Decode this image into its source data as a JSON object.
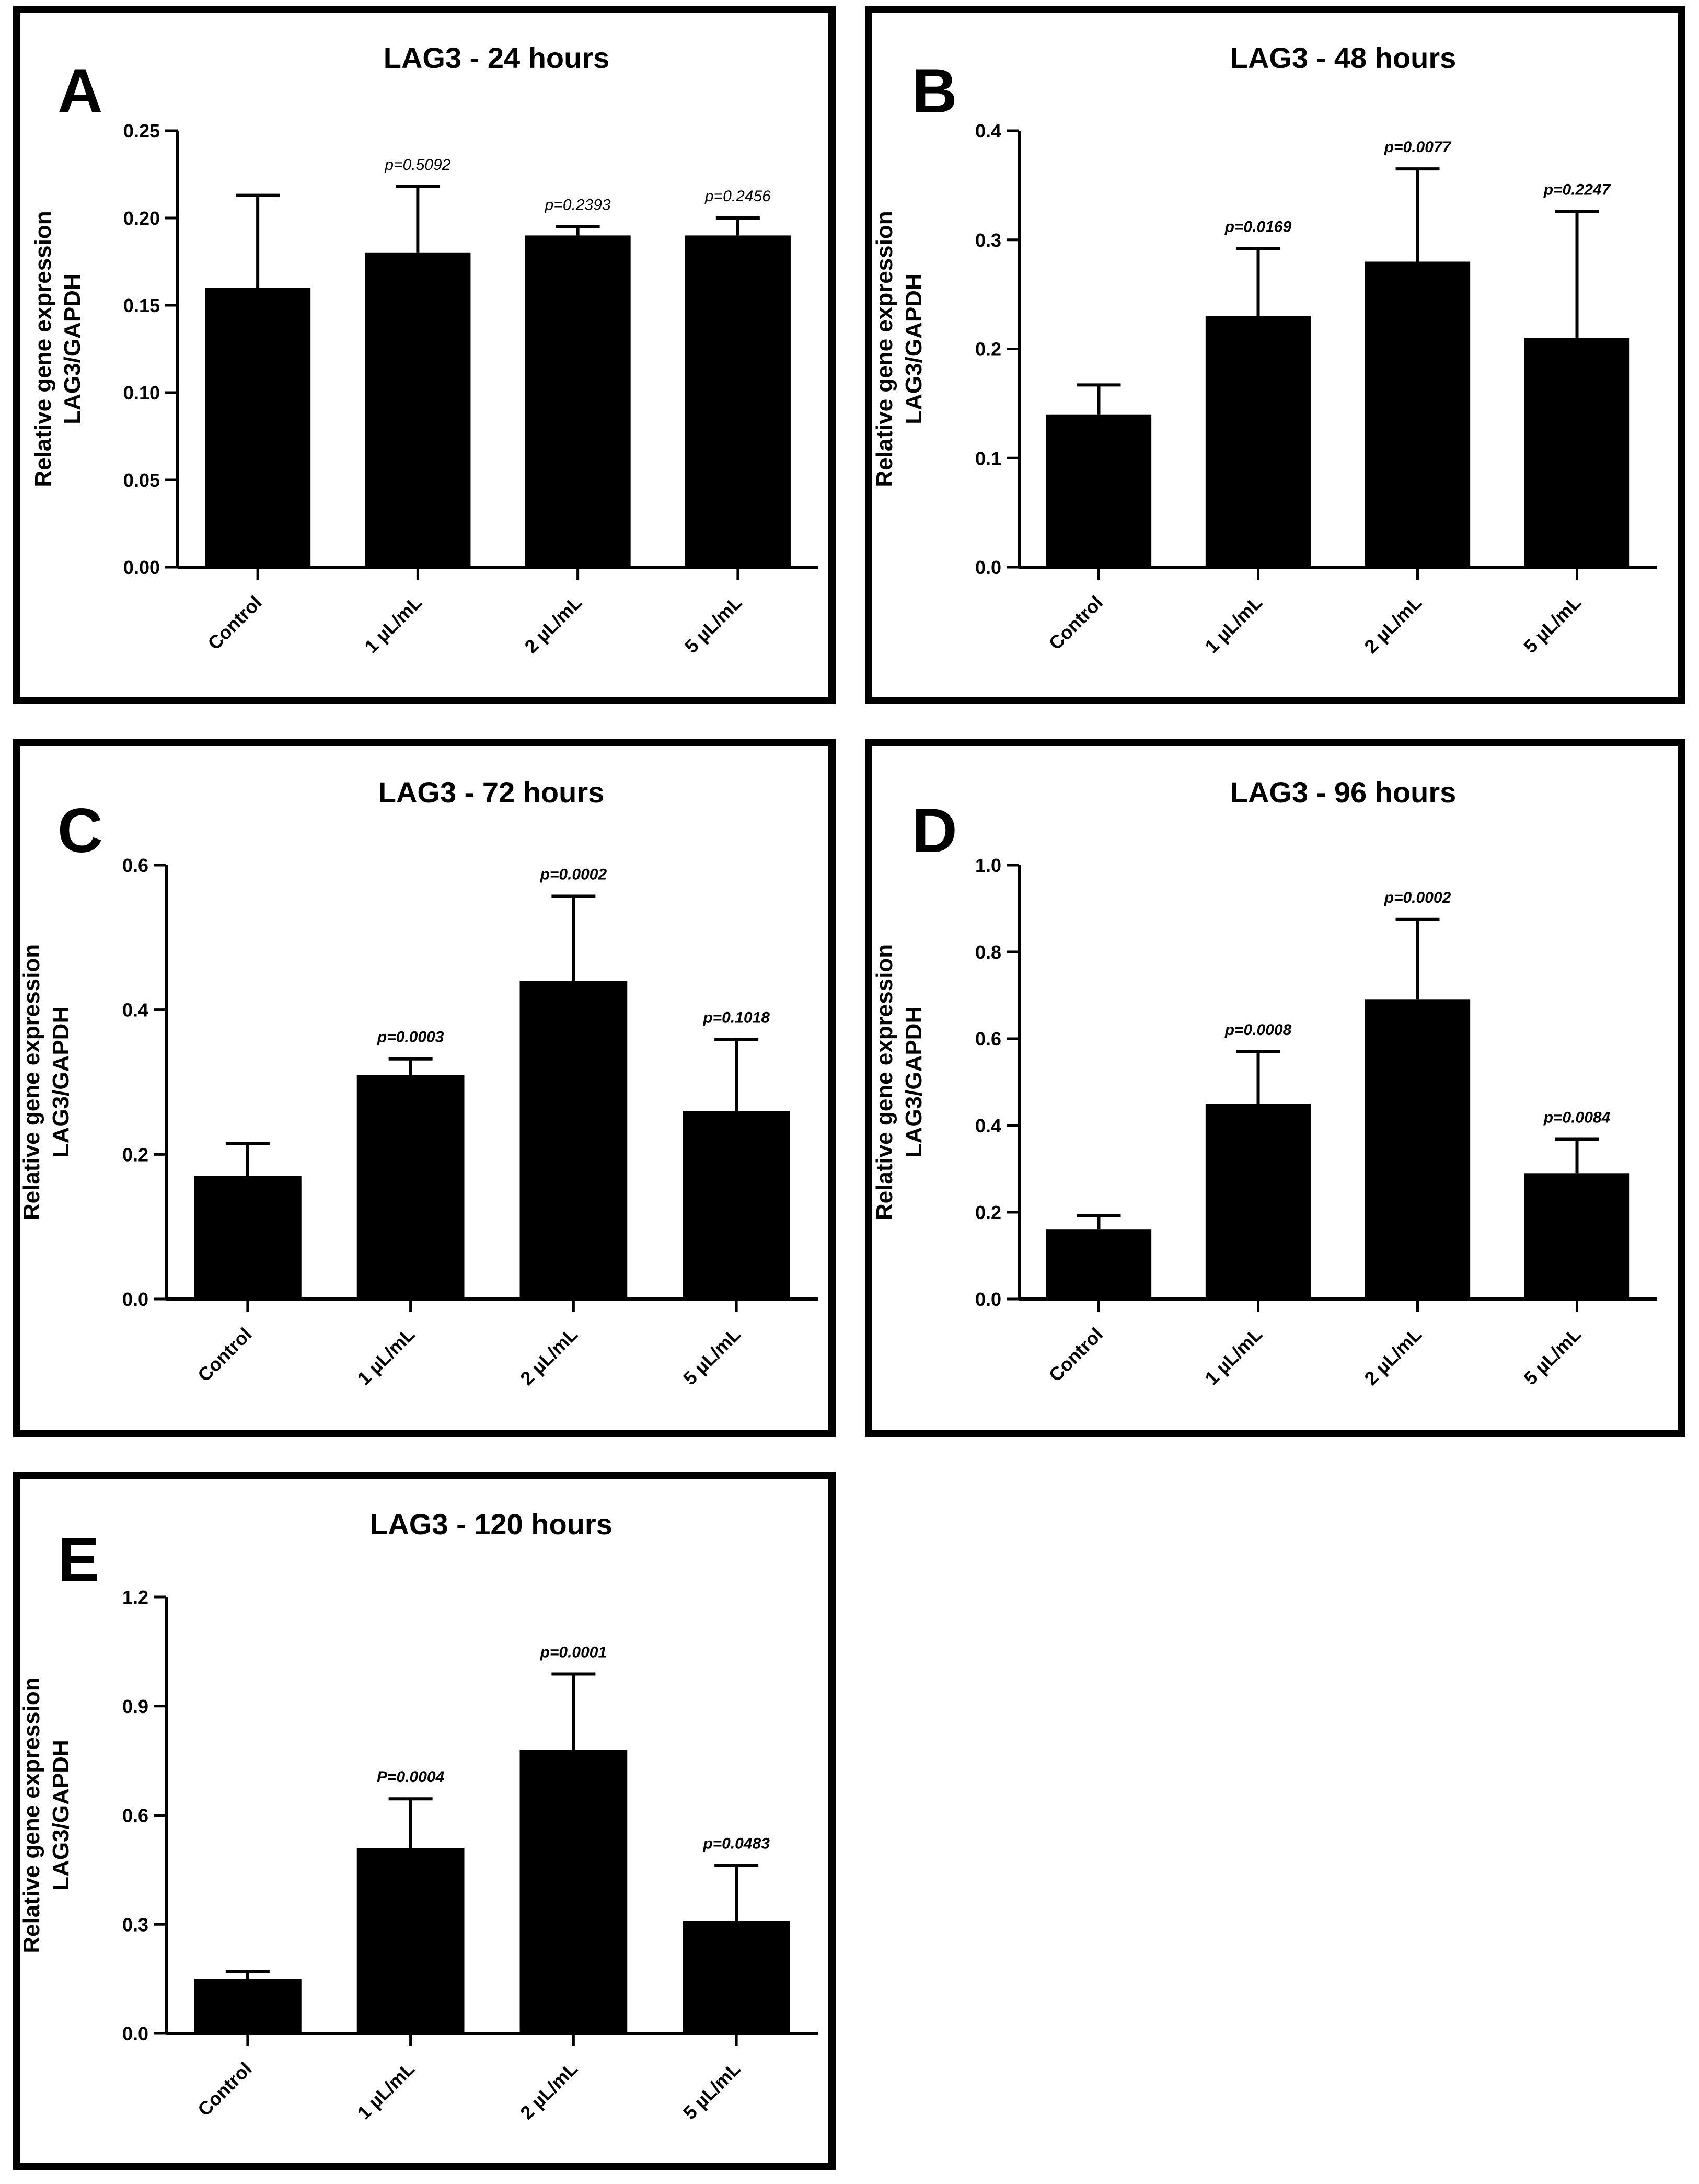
{
  "chart_data": [
    {
      "panel": "A",
      "type": "bar",
      "title": "LAG3 - 24 hours",
      "ylabel_line1": "Relative gene expression",
      "ylabel_line2": "LAG3/GAPDH",
      "categories": [
        "Control",
        "1 µL/mL",
        "2 µL/mL",
        "5 µL/mL"
      ],
      "values": [
        0.16,
        0.18,
        0.19,
        0.19
      ],
      "errors": [
        0.053,
        0.038,
        0.005,
        0.01
      ],
      "pvalues": [
        "",
        "p=0.5092",
        "p=0.2393",
        "p=0.2456"
      ],
      "pvalue_style": "light",
      "ylim": [
        0,
        0.25
      ],
      "yticks": [
        "0.00",
        "0.05",
        "0.10",
        "0.15",
        "0.20",
        "0.25"
      ]
    },
    {
      "panel": "B",
      "type": "bar",
      "title": "LAG3 - 48 hours",
      "ylabel_line1": "Relative gene expression",
      "ylabel_line2": "LAG3/GAPDH",
      "categories": [
        "Control",
        "1 µL/mL",
        "2 µL/mL",
        "5 µL/mL"
      ],
      "values": [
        0.14,
        0.23,
        0.28,
        0.21
      ],
      "errors": [
        0.027,
        0.062,
        0.085,
        0.116
      ],
      "pvalues": [
        "",
        "p=0.0169",
        "p=0.0077",
        "p=0.2247"
      ],
      "pvalue_style": "bold",
      "ylim": [
        0,
        0.4
      ],
      "yticks": [
        "0.0",
        "0.1",
        "0.2",
        "0.3",
        "0.4"
      ]
    },
    {
      "panel": "C",
      "type": "bar",
      "title": "LAG3 - 72 hours",
      "ylabel_line1": "Relative gene expression",
      "ylabel_line2": "LAG3/GAPDH",
      "categories": [
        "Control",
        "1 µL/mL",
        "2 µL/mL",
        "5 µL/mL"
      ],
      "values": [
        0.17,
        0.31,
        0.44,
        0.26
      ],
      "errors": [
        0.045,
        0.022,
        0.117,
        0.099
      ],
      "pvalues": [
        "",
        "p=0.0003",
        "p=0.0002",
        "p=0.1018"
      ],
      "pvalue_style": "bold",
      "ylim": [
        0,
        0.6
      ],
      "yticks": [
        "0.0",
        "0.2",
        "0.4",
        "0.6"
      ]
    },
    {
      "panel": "D",
      "type": "bar",
      "title": "LAG3 - 96 hours",
      "ylabel_line1": "Relative gene expression",
      "ylabel_line2": "LAG3/GAPDH",
      "categories": [
        "Control",
        "1 µL/mL",
        "2 µL/mL",
        "5 µL/mL"
      ],
      "values": [
        0.16,
        0.45,
        0.69,
        0.29
      ],
      "errors": [
        0.032,
        0.12,
        0.185,
        0.078
      ],
      "pvalues": [
        "",
        "p=0.0008",
        "p=0.0002",
        "p=0.0084"
      ],
      "pvalue_style": "bold",
      "ylim": [
        0,
        1.0
      ],
      "yticks": [
        "0.0",
        "0.2",
        "0.4",
        "0.6",
        "0.8",
        "1.0"
      ]
    },
    {
      "panel": "E",
      "type": "bar",
      "title": "LAG3 - 120 hours",
      "ylabel_line1": "Relative gene expression",
      "ylabel_line2": "LAG3/GAPDH",
      "categories": [
        "Control",
        "1 µL/mL",
        "2 µL/mL",
        "5 µL/mL"
      ],
      "values": [
        0.15,
        0.51,
        0.78,
        0.31
      ],
      "errors": [
        0.02,
        0.135,
        0.208,
        0.152
      ],
      "pvalues": [
        "",
        "P=0.0004",
        "p=0.0001",
        "p=0.0483"
      ],
      "pvalue_style": "bold",
      "ylim": [
        0,
        1.2
      ],
      "yticks": [
        "0.0",
        "0.3",
        "0.6",
        "0.9",
        "1.2"
      ]
    }
  ]
}
